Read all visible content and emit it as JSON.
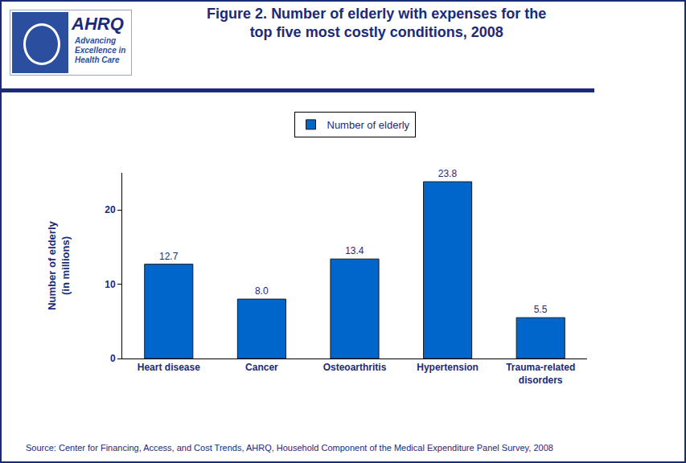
{
  "chart_data": {
    "type": "bar",
    "title": "Figure 2. Number of elderly with expenses for the\ntop five most costly conditions, 2008",
    "y_label": "Number of elderly\n(in millions)",
    "categories": [
      "Heart disease",
      "Cancer",
      "Osteoarthritis",
      "Hypertension",
      "Trauma-related\ndisorders"
    ],
    "series": [
      {
        "name": "Number of elderly",
        "color": "#0066cc",
        "values": [
          12.7,
          8.0,
          13.4,
          23.8,
          5.5
        ],
        "value_labels": [
          "12.7",
          "8.0",
          "13.4",
          "23.8",
          "5.5"
        ]
      }
    ],
    "ylim": [
      0,
      25
    ],
    "yticks": [
      0,
      10,
      20
    ],
    "grid": false,
    "legend": "top",
    "data_labels": true,
    "annotations": [
      "Source: Center for Financing, Access, and Cost Trends, AHRQ, Household Component of the Medical Expenditure Panel Survey, 2008"
    ]
  },
  "logo": {
    "name": "AHRQ",
    "tagline": [
      "Advancing",
      "Excellence in",
      "Health Care"
    ]
  }
}
